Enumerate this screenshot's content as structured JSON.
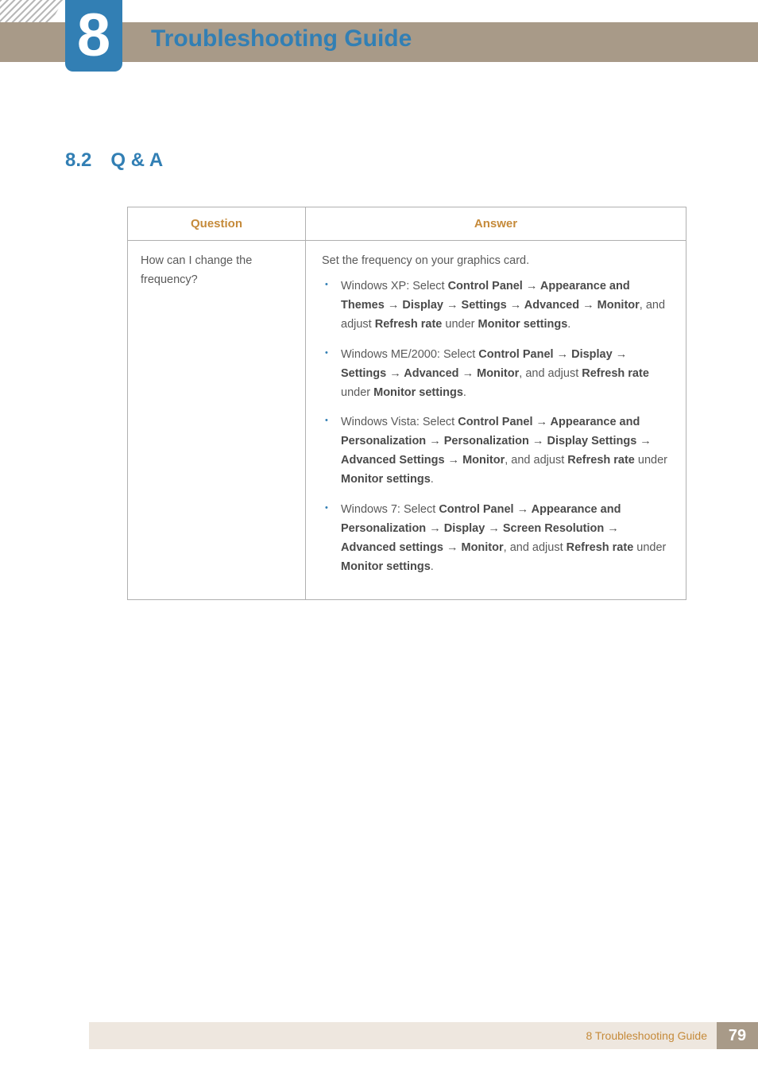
{
  "header": {
    "chapter_number": "8",
    "chapter_title": "Troubleshooting Guide",
    "band_color": "#a89a88",
    "badge_color": "#327fb4",
    "title_color": "#327fb4"
  },
  "section": {
    "number": "8.2",
    "title": "Q & A",
    "color": "#327fb4"
  },
  "table": {
    "headers": {
      "question": "Question",
      "answer": "Answer"
    },
    "header_color": "#c58a3a",
    "border_color": "#b0b0b0",
    "row": {
      "question": "How can I change the frequency?",
      "answer_intro": "Set the frequency on your graphics card.",
      "items": [
        {
          "prefix": "Windows XP: Select ",
          "path": "Control Panel → Appearance and Themes → Display → Settings → Advanced → Monitor",
          "mid": ", and adjust ",
          "bold2": "Refresh rate",
          "mid2": " under ",
          "bold3": "Monitor settings",
          "suffix": "."
        },
        {
          "prefix": "Windows ME/2000: Select ",
          "path": "Control Panel → Display → Settings → Advanced → Monitor",
          "mid": ", and adjust ",
          "bold2": "Refresh rate",
          "mid2": " under ",
          "bold3": "Monitor settings",
          "suffix": "."
        },
        {
          "prefix": "Windows Vista: Select ",
          "path": "Control Panel → Appearance and Personalization → Personalization → Display Settings → Advanced Settings → Monitor",
          "mid": ", and adjust ",
          "bold2": "Refresh rate",
          "mid2": " under ",
          "bold3": "Monitor settings",
          "suffix": "."
        },
        {
          "prefix": "Windows 7: Select ",
          "path": "Control Panel → Appearance and Personalization → Display → Screen Resolution → Advanced settings → Monitor",
          "mid": ", and adjust ",
          "bold2": "Refresh rate",
          "mid2": " under ",
          "bold3": "Monitor settings",
          "suffix": "."
        }
      ]
    }
  },
  "footer": {
    "text": "8 Troubleshooting Guide",
    "page": "79",
    "band_color": "#eee7df",
    "text_color": "#c58a3a",
    "page_bg": "#a89a88"
  }
}
